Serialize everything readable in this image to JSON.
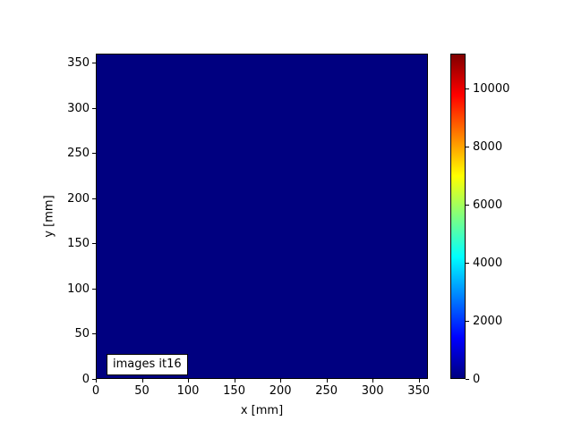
{
  "chart_data": {
    "type": "heatmap",
    "title": "",
    "xlabel": "x [mm]",
    "ylabel": "y [mm]",
    "xlim": [
      0,
      360
    ],
    "ylim": [
      0,
      360
    ],
    "x_ticks": [
      0,
      50,
      100,
      150,
      200,
      250,
      300,
      350
    ],
    "y_ticks": [
      0,
      50,
      100,
      150,
      200,
      250,
      300,
      350
    ],
    "grid": false,
    "annotation": "images it16",
    "field": {
      "description": "uniform image field over the full 0-360 mm x 0-360 mm extent, entirely at the colormap minimum (dark navy)",
      "uniform_value": 0
    },
    "colormap": {
      "name": "jet",
      "stops": [
        "#000080",
        "#0000ff",
        "#00ffff",
        "#ffff00",
        "#ff0000",
        "#800000"
      ],
      "stop_positions": [
        0,
        0.125,
        0.375,
        0.625,
        0.875,
        1.0
      ]
    },
    "colorbar": {
      "position": "right",
      "ticks": [
        0,
        2000,
        4000,
        6000,
        8000,
        10000
      ],
      "vmin": 0,
      "vmax_estimate": 11200
    },
    "plot_fill_color": "#000080",
    "background_color": "#ffffff",
    "text_color": "#000000"
  }
}
